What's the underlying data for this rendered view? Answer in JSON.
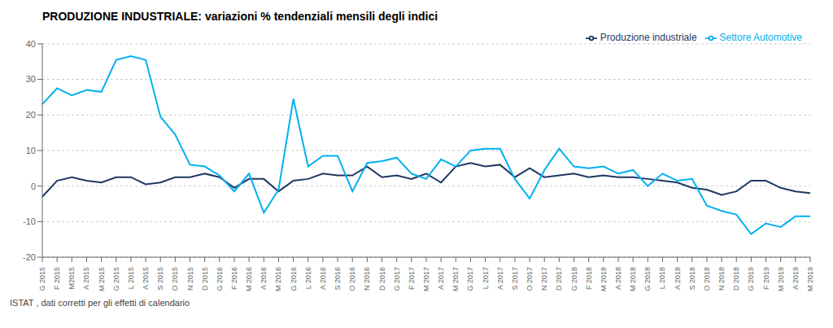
{
  "chart_data": {
    "type": "line",
    "title": "PRODUZIONE INDUSTRIALE: variazioni % tendenziali mensili degli indici",
    "annotations": [
      "ISTAT , dati corretti per gli effetti di calendario"
    ],
    "categories": [
      "G 2015",
      "F 2015",
      "M2015",
      "A 2015",
      "M 2015",
      "G 2015",
      "L 2015",
      "A 2015",
      "S 2015",
      "O 2015",
      "N 2015",
      "D 2015",
      "G 2016",
      "F 2016",
      "M 2016",
      "A 2016",
      "M 2016",
      "G 2016",
      "L 2016",
      "A 2016",
      "S 2016",
      "O 2016",
      "N 2016",
      "D 2016",
      "G 2017",
      "F 2017",
      "M 2017",
      "A 2017",
      "M 2017",
      "G 2017",
      "L 2017",
      "A 2017",
      "S 2017",
      "O 2017",
      "N 2017",
      "D 2017",
      "G 2018",
      "F 2018",
      "M 2018",
      "A 2018",
      "M 2018",
      "G 2018",
      "L 2018",
      "A 2018",
      "S 2018",
      "O 2018",
      "N 2018",
      "D 2018",
      "G 2019",
      "F 2019",
      "M 2019",
      "A 2019",
      "M 2019"
    ],
    "series": [
      {
        "name": "Produzione industriale",
        "color": "#1f3864",
        "values": [
          -3.0,
          1.5,
          2.5,
          1.5,
          1.0,
          2.5,
          2.5,
          0.5,
          1.0,
          2.5,
          2.5,
          3.5,
          2.5,
          -0.5,
          2.0,
          2.0,
          -1.5,
          1.5,
          2.0,
          3.5,
          3.0,
          3.0,
          5.5,
          2.5,
          3.0,
          2.0,
          3.5,
          1.0,
          5.5,
          6.5,
          5.5,
          6.0,
          2.5,
          5.0,
          2.5,
          3.0,
          3.5,
          2.5,
          3.0,
          2.5,
          2.5,
          2.0,
          1.5,
          1.0,
          -0.5,
          -1.0,
          -2.5,
          -1.5,
          1.5,
          1.5,
          -0.5,
          -1.5,
          -2.0
        ]
      },
      {
        "name": "Settore Automotive",
        "color": "#00b0f0",
        "values": [
          23.0,
          27.5,
          25.5,
          27.0,
          26.5,
          35.5,
          36.5,
          35.5,
          19.5,
          14.5,
          6.0,
          5.5,
          3.0,
          -1.5,
          3.5,
          -7.5,
          -1.0,
          24.5,
          5.5,
          8.5,
          8.5,
          -1.5,
          6.5,
          7.0,
          8.0,
          3.5,
          2.0,
          7.5,
          5.5,
          10.0,
          10.5,
          10.5,
          2.0,
          -3.5,
          4.5,
          10.5,
          5.5,
          5.0,
          5.5,
          3.5,
          4.5,
          0.0,
          3.5,
          1.5,
          2.0,
          -5.5,
          -7.0,
          -8.0,
          -13.5,
          -10.5,
          -11.5,
          -8.5,
          -8.5
        ]
      }
    ],
    "ylim": [
      -20,
      40
    ],
    "yticks": [
      -20,
      -10,
      0,
      10,
      20,
      30,
      40
    ],
    "grid": true,
    "legend": "upper right"
  }
}
